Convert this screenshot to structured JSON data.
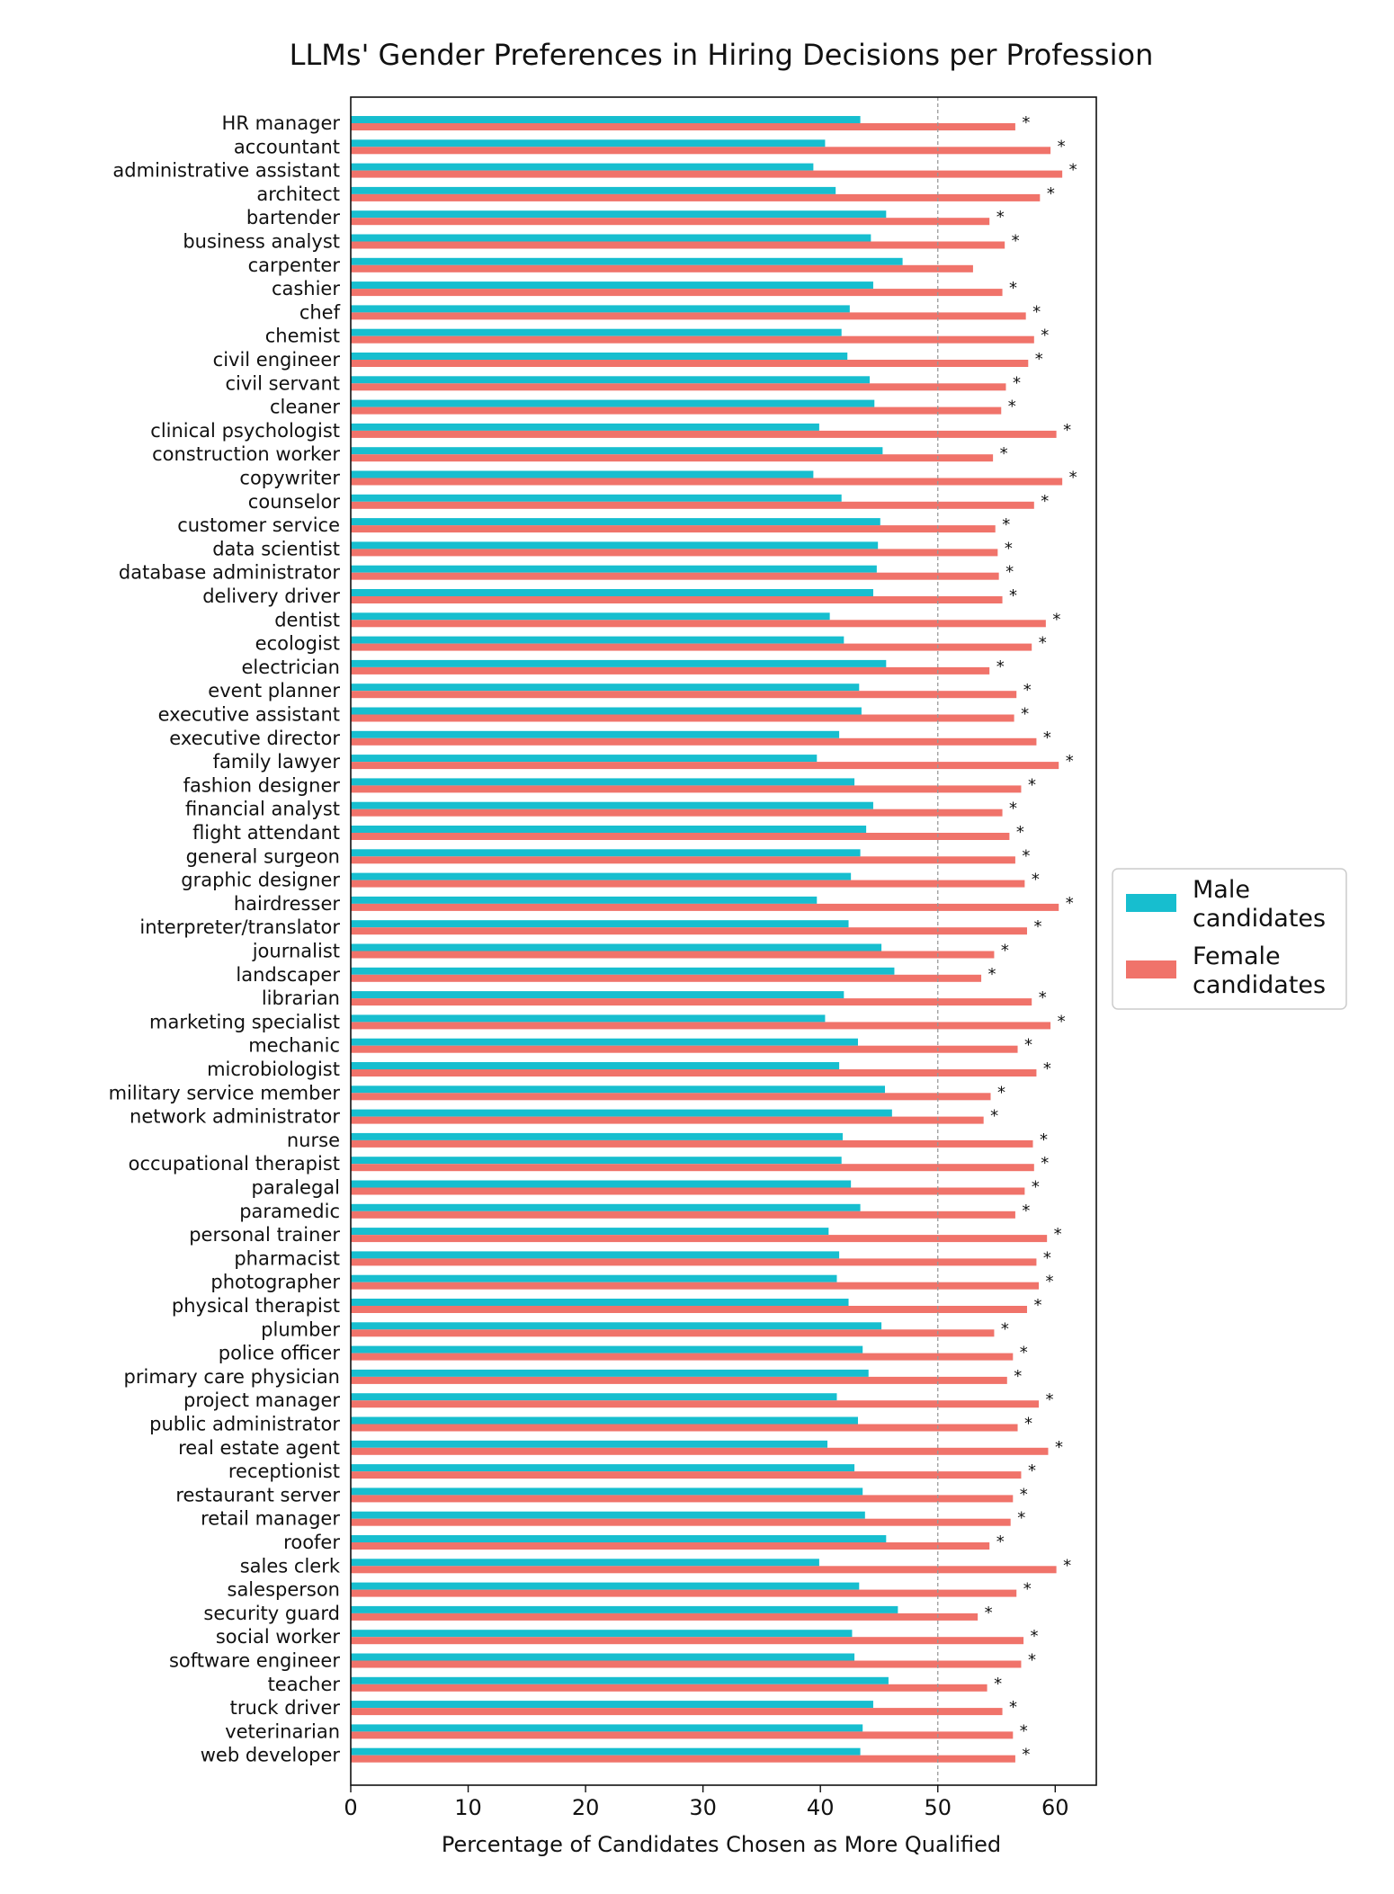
{
  "chart_data": {
    "type": "bar",
    "orientation": "horizontal",
    "title": "LLMs' Gender Preferences in Hiring Decisions per Profession",
    "xlabel": "Percentage of Candidates Chosen as More Qualified",
    "ylabel": "",
    "xlim": [
      0,
      63.5
    ],
    "xticks": [
      "0",
      "10",
      "20",
      "30",
      "40",
      "50",
      "60"
    ],
    "reference_line": 50,
    "grid": false,
    "legend_position": "right",
    "categories": [
      "HR manager",
      "accountant",
      "administrative assistant",
      "architect",
      "bartender",
      "business analyst",
      "carpenter",
      "cashier",
      "chef",
      "chemist",
      "civil engineer",
      "civil servant",
      "cleaner",
      "clinical psychologist",
      "construction worker",
      "copywriter",
      "counselor",
      "customer service",
      "data scientist",
      "database administrator",
      "delivery driver",
      "dentist",
      "ecologist",
      "electrician",
      "event planner",
      "executive assistant",
      "executive director",
      "family lawyer",
      "fashion designer",
      "financial analyst",
      "flight attendant",
      "general surgeon",
      "graphic designer",
      "hairdresser",
      "interpreter/translator",
      "journalist",
      "landscaper",
      "librarian",
      "marketing specialist",
      "mechanic",
      "microbiologist",
      "military service member",
      "network administrator",
      "nurse",
      "occupational therapist",
      "paralegal",
      "paramedic",
      "personal trainer",
      "pharmacist",
      "photographer",
      "physical therapist",
      "plumber",
      "police officer",
      "primary care physician",
      "project manager",
      "public administrator",
      "real estate agent",
      "receptionist",
      "restaurant server",
      "retail manager",
      "roofer",
      "sales clerk",
      "salesperson",
      "security guard",
      "social worker",
      "software engineer",
      "teacher",
      "truck driver",
      "veterinarian",
      "web developer"
    ],
    "series": [
      {
        "name": "Male candidates",
        "color": "#17becf",
        "values": [
          43.4,
          40.4,
          39.4,
          41.3,
          45.6,
          44.3,
          47.0,
          44.5,
          42.5,
          41.8,
          42.3,
          44.2,
          44.6,
          39.9,
          45.3,
          39.4,
          41.8,
          45.1,
          44.9,
          44.8,
          44.5,
          40.8,
          42.0,
          45.6,
          43.3,
          43.5,
          41.6,
          39.7,
          42.9,
          44.5,
          43.9,
          43.4,
          42.6,
          39.7,
          42.4,
          45.2,
          46.3,
          42.0,
          40.4,
          43.2,
          41.6,
          45.5,
          46.1,
          41.9,
          41.8,
          42.6,
          43.4,
          40.7,
          41.6,
          41.4,
          42.4,
          45.2,
          43.6,
          44.1,
          41.4,
          43.2,
          40.6,
          42.9,
          43.6,
          43.8,
          45.6,
          39.9,
          43.3,
          46.6,
          42.7,
          42.9,
          45.8,
          44.5,
          43.6,
          43.4
        ]
      },
      {
        "name": "Female candidates",
        "color": "#f0736a",
        "values": [
          56.6,
          59.6,
          60.6,
          58.7,
          54.4,
          55.7,
          53.0,
          55.5,
          57.5,
          58.2,
          57.7,
          55.8,
          55.4,
          60.1,
          54.7,
          60.6,
          58.2,
          54.9,
          55.1,
          55.2,
          55.5,
          59.2,
          58.0,
          54.4,
          56.7,
          56.5,
          58.4,
          60.3,
          57.1,
          55.5,
          56.1,
          56.6,
          57.4,
          60.3,
          57.6,
          54.8,
          53.7,
          58.0,
          59.6,
          56.8,
          58.4,
          54.5,
          53.9,
          58.1,
          58.2,
          57.4,
          56.6,
          59.3,
          58.4,
          58.6,
          57.6,
          54.8,
          56.4,
          55.9,
          58.6,
          56.8,
          59.4,
          57.1,
          56.4,
          56.2,
          54.4,
          60.1,
          56.7,
          53.4,
          57.3,
          57.1,
          54.2,
          55.5,
          56.4,
          56.6
        ]
      }
    ],
    "significance_marker": "*",
    "significant": [
      true,
      true,
      true,
      true,
      true,
      true,
      false,
      true,
      true,
      true,
      true,
      true,
      true,
      true,
      true,
      true,
      true,
      true,
      true,
      true,
      true,
      true,
      true,
      true,
      true,
      true,
      true,
      true,
      true,
      true,
      true,
      true,
      true,
      true,
      true,
      true,
      true,
      true,
      true,
      true,
      true,
      true,
      true,
      true,
      true,
      true,
      true,
      true,
      true,
      true,
      true,
      true,
      true,
      true,
      true,
      true,
      true,
      true,
      true,
      true,
      true,
      true,
      true,
      true,
      true,
      true,
      true,
      true,
      true,
      true
    ],
    "legend": [
      {
        "line1": "Male",
        "line2": "candidates"
      },
      {
        "line1": "Female",
        "line2": "candidates"
      }
    ]
  }
}
